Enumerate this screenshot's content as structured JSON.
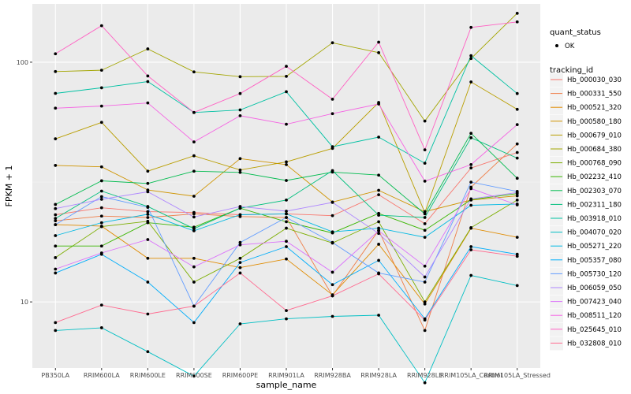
{
  "chart_data": {
    "type": "line",
    "xlabel": "sample_name",
    "ylabel": "FPKM + 1",
    "y_scale": "log10",
    "ylim": [
      5.3,
      175
    ],
    "y_ticks": [
      10,
      100
    ],
    "grid": true,
    "legend_placement": "right",
    "categories": [
      "PB350LA",
      "RRIM600LA",
      "RRIM600LE",
      "RRIM600SE",
      "RRIM600PE",
      "RRIM901LA",
      "RRIM928BA",
      "RRIM928LA",
      "RRIM928LE",
      "RRIM105LA_Control",
      "RRIM105LA_Stressed"
    ],
    "quant_status": {
      "title": "quant_status",
      "levels": [
        "OK"
      ]
    },
    "legend_title": "tracking_id",
    "series": [
      {
        "name": "Hb_000030_030",
        "color": "#F8766D",
        "values": [
          23.1,
          24.7,
          23.8,
          23.6,
          23.1,
          23.3,
          22.9,
          28.0,
          21.2,
          36.2,
          42.0
        ]
      },
      {
        "name": "Hb_000331_550",
        "color": "#EF7F49",
        "values": [
          21.8,
          22.8,
          22.5,
          23.3,
          22.7,
          22.5,
          10.6,
          19.9,
          7.6,
          30.1,
          45.6
        ]
      },
      {
        "name": "Hb_000521_320",
        "color": "#E08B00",
        "values": [
          21.0,
          20.7,
          15.2,
          15.2,
          13.9,
          15.1,
          10.7,
          17.4,
          9.8,
          20.3,
          18.6
        ]
      },
      {
        "name": "Hb_000580_180",
        "color": "#CF9400",
        "values": [
          37.1,
          36.6,
          29.3,
          27.6,
          39.6,
          37.4,
          26.1,
          29.2,
          23.8,
          26.6,
          27.7
        ]
      },
      {
        "name": "Hb_000679_010",
        "color": "#B99E00",
        "values": [
          47.9,
          56.1,
          35.1,
          40.7,
          35.5,
          38.4,
          43.7,
          67.9,
          23.6,
          82.7,
          63.6
        ]
      },
      {
        "name": "Hb_000684_380",
        "color": "#A3A500",
        "values": [
          91.4,
          92.6,
          113.6,
          91.1,
          87.0,
          87.3,
          120.5,
          109.6,
          56.8,
          103.6,
          160.0
        ]
      },
      {
        "name": "Hb_000768_090",
        "color": "#7CAE00",
        "values": [
          15.3,
          20.6,
          21.7,
          12.1,
          15.2,
          20.3,
          17.6,
          21.6,
          10.0,
          20.4,
          26.6
        ]
      },
      {
        "name": "Hb_002232_410",
        "color": "#39B600",
        "values": [
          17.1,
          17.1,
          21.4,
          20.5,
          24.6,
          21.6,
          19.4,
          23.4,
          19.9,
          26.7,
          28.3
        ]
      },
      {
        "name": "Hb_002303_070",
        "color": "#00BB4E",
        "values": [
          25.5,
          32.0,
          31.2,
          35.1,
          34.7,
          32.1,
          34.8,
          33.8,
          23.3,
          50.5,
          32.8
        ]
      },
      {
        "name": "Hb_002311_180",
        "color": "#00BF7D",
        "values": [
          22.3,
          29.0,
          25.0,
          20.2,
          24.6,
          26.6,
          35.3,
          23.0,
          22.5,
          48.4,
          39.8
        ]
      },
      {
        "name": "Hb_003918_010",
        "color": "#00C1A3",
        "values": [
          74.1,
          78.2,
          83.0,
          61.7,
          63.2,
          75.3,
          44.4,
          48.7,
          37.9,
          106.5,
          74.0
        ]
      },
      {
        "name": "Hb_004070_020",
        "color": "#00BFC4",
        "values": [
          7.6,
          7.8,
          6.2,
          4.9,
          8.1,
          8.5,
          8.7,
          8.8,
          4.6,
          12.9,
          11.7
        ]
      },
      {
        "name": "Hb_005271_220",
        "color": "#00B9E3",
        "values": [
          18.9,
          21.4,
          23.2,
          19.8,
          23.1,
          23.3,
          19.6,
          20.3,
          18.6,
          25.3,
          25.6
        ]
      },
      {
        "name": "Hb_005357_080",
        "color": "#00ADFA",
        "values": [
          13.2,
          15.8,
          12.1,
          8.2,
          14.6,
          17.0,
          11.8,
          14.9,
          8.5,
          17.0,
          15.8
        ]
      },
      {
        "name": "Hb_005730_120",
        "color": "#619CFF",
        "values": [
          21.0,
          27.5,
          24.8,
          9.6,
          17.7,
          22.5,
          17.7,
          13.2,
          12.1,
          31.6,
          28.9
        ]
      },
      {
        "name": "Hb_006059_050",
        "color": "#AE87FF",
        "values": [
          24.5,
          26.8,
          28.8,
          22.6,
          25.0,
          23.9,
          26.0,
          19.3,
          12.7,
          26.9,
          28.6
        ]
      },
      {
        "name": "Hb_007423_040",
        "color": "#DB72FB",
        "values": [
          13.7,
          16.0,
          18.2,
          14.0,
          17.3,
          17.9,
          13.3,
          19.8,
          14.1,
          29.7,
          25.4
        ]
      },
      {
        "name": "Hb_008511_120",
        "color": "#F564E3",
        "values": [
          64.3,
          65.6,
          67.6,
          46.5,
          59.8,
          55.1,
          61.0,
          66.9,
          31.9,
          37.4,
          54.9
        ]
      },
      {
        "name": "Hb_025645_010",
        "color": "#FF61C3",
        "values": [
          108.4,
          142.0,
          87.6,
          61.7,
          74.0,
          96.1,
          70.1,
          121.2,
          43.1,
          139.7,
          147.3
        ]
      },
      {
        "name": "Hb_032808_010",
        "color": "#FF6C91",
        "values": [
          8.2,
          9.7,
          8.9,
          9.6,
          13.2,
          9.2,
          10.6,
          13.1,
          8.4,
          16.5,
          15.5
        ]
      }
    ]
  }
}
